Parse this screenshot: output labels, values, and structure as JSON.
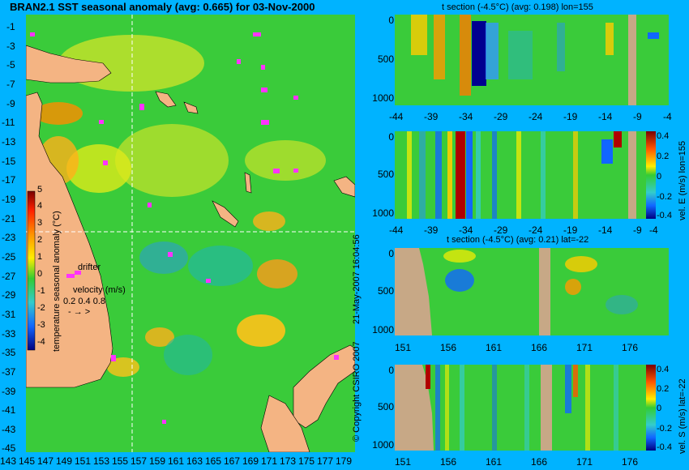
{
  "map": {
    "title": "BRAN2.1 SST seasonal anomaly (avg: 0.665) for 03-Nov-2000",
    "lat_ticks": [
      "-1",
      "-3",
      "-5",
      "-7",
      "-9",
      "-11",
      "-13",
      "-15",
      "-17",
      "-19",
      "-21",
      "-23",
      "-25",
      "-27",
      "-29",
      "-31",
      "-33",
      "-35",
      "-37",
      "-39",
      "-41",
      "-43",
      "-45"
    ],
    "lon_ticks": [
      "143",
      "145",
      "147",
      "149",
      "151",
      "153",
      "155",
      "157",
      "159",
      "161",
      "163",
      "165",
      "167",
      "169",
      "171",
      "173",
      "175",
      "177",
      "179"
    ],
    "colorbar_ticks": [
      "5",
      "4",
      "3",
      "2",
      "1",
      "0",
      "-1",
      "-2",
      "-3",
      "-4"
    ],
    "colorbar_label": "temperature seasonal anomaly (°C)",
    "drifter_label": "drifter",
    "velocity_label": "velocity (m/s)",
    "velocity_scale": "0.2 0.4 0.8",
    "colors": {
      "ocean_green": "#33cc33",
      "land": "#f4b483",
      "drifter": "#ff33ff",
      "crosshair": "#ffffff"
    }
  },
  "panels": {
    "t_section_lon": {
      "title": "t section (-4.5°C) (avg: 0.198) lon=155",
      "x_ticks": [
        "-44",
        "-39",
        "-34",
        "-29",
        "-24",
        "-19",
        "-14",
        "-9",
        "-4"
      ],
      "y_ticks": [
        "0",
        "500",
        "1000"
      ]
    },
    "vel_e": {
      "x_ticks": [
        "-44",
        "-39",
        "-34",
        "-29",
        "-24",
        "-19",
        "-14",
        "-9",
        "-4"
      ],
      "y_ticks": [
        "0",
        "500",
        "1000"
      ],
      "colorbar_ticks": [
        "0.4",
        "0.2",
        "0",
        "-0.2",
        "-0.4"
      ],
      "colorbar_label": "vel. E (m/s) lon=155"
    },
    "t_section_lat": {
      "title": "t section (-4.5°C) (avg: 0.21) lat=-22",
      "x_ticks": [
        "151",
        "156",
        "161",
        "166",
        "171",
        "176"
      ],
      "y_ticks": [
        "0",
        "500",
        "1000"
      ]
    },
    "vel_s": {
      "x_ticks": [
        "151",
        "156",
        "161",
        "166",
        "171",
        "176"
      ],
      "y_ticks": [
        "0",
        "500",
        "1000"
      ],
      "colorbar_ticks": [
        "0.4",
        "0.2",
        "0",
        "-0.2",
        "-0.4"
      ],
      "colorbar_label": "vel. S (m/s) lat=-22"
    }
  },
  "footer": {
    "timestamp": "21-May-2007 16:04:56",
    "copyright": "© Copyright CSIRO 2007"
  }
}
